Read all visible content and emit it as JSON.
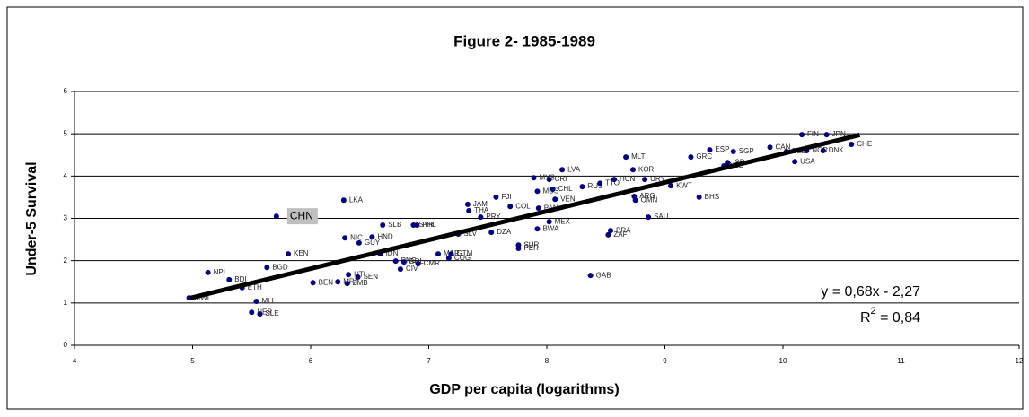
{
  "chart_data": {
    "type": "scatter",
    "title": "Figure 2- 1985-1989",
    "x_label": "GDP per capita (logarithms)",
    "y_label": "Under-5 Survival",
    "xlim": [
      4,
      12
    ],
    "ylim": [
      0,
      6
    ],
    "xticks": [
      4,
      5,
      6,
      7,
      8,
      9,
      10,
      11,
      12
    ],
    "yticks": [
      0,
      1,
      2,
      3,
      4,
      5,
      6
    ],
    "grid": true,
    "color": "#000080",
    "highlight_color": "#c0c0c0",
    "highlighted_points": [
      8
    ],
    "labels": [
      "MWI",
      "NPL",
      "BDI",
      "ETH",
      "BGD",
      "MLI",
      "NER",
      "SLE",
      "CHN",
      "LKA",
      "KEN",
      "NIC",
      "HND",
      "GUY",
      "IDN",
      "SLB",
      "SYR",
      "PHL",
      "PNG",
      "HTI",
      "SEN",
      "MRT",
      "ZMB",
      "BEN",
      "CIV",
      "BOL",
      "CMR",
      "COG",
      "MAR",
      "GTM",
      "JAM",
      "THA",
      "SLV",
      "DZA",
      "PRY",
      "FJI",
      "COL",
      "PAN",
      "BWA",
      "MEX",
      "SUR",
      "PER",
      "BRA",
      "ZAF",
      "GAB",
      "MUS",
      "CHL",
      "CRI",
      "MYS",
      "LVA",
      "VEN",
      "RUS",
      "TTO",
      "HUN",
      "MLT",
      "KOR",
      "OMN",
      "ARG",
      "URY",
      "SAU",
      "KWT",
      "BHS",
      "GRC",
      "ISR",
      "ESP",
      "SGP",
      "NZL",
      "CAN",
      "USA",
      "BEL",
      "NOR",
      "DNK",
      "FIN",
      "JPN",
      "CHE"
    ],
    "x": [
      4.97,
      5.13,
      5.31,
      5.42,
      5.63,
      5.54,
      5.5,
      5.57,
      5.71,
      6.28,
      5.81,
      6.29,
      6.52,
      6.41,
      6.59,
      6.61,
      6.87,
      6.9,
      6.72,
      6.32,
      6.4,
      6.23,
      6.31,
      6.02,
      6.76,
      6.79,
      6.91,
      7.17,
      7.08,
      7.19,
      7.33,
      7.34,
      7.25,
      7.53,
      7.44,
      7.57,
      7.69,
      7.93,
      7.92,
      8.02,
      7.76,
      7.76,
      8.54,
      8.52,
      8.37,
      7.92,
      8.05,
      8.02,
      7.89,
      8.13,
      8.07,
      8.3,
      8.45,
      8.57,
      8.67,
      8.73,
      8.75,
      8.74,
      8.83,
      8.86,
      9.05,
      9.29,
      9.22,
      9.53,
      9.38,
      9.58,
      9.5,
      9.89,
      10.1,
      10.03,
      10.2,
      10.34,
      10.16,
      10.37,
      10.58
    ],
    "y": [
      1.12,
      1.72,
      1.55,
      1.36,
      1.84,
      1.04,
      0.78,
      0.74,
      3.05,
      3.43,
      2.16,
      2.54,
      2.56,
      2.42,
      2.16,
      2.84,
      2.84,
      2.84,
      1.99,
      1.67,
      1.61,
      1.5,
      1.46,
      1.48,
      1.8,
      1.97,
      1.93,
      2.06,
      2.16,
      2.16,
      3.33,
      3.18,
      2.63,
      2.67,
      3.03,
      3.5,
      3.28,
      3.24,
      2.75,
      2.92,
      2.37,
      2.29,
      2.71,
      2.61,
      1.65,
      3.64,
      3.69,
      3.92,
      3.96,
      4.15,
      3.45,
      3.75,
      3.83,
      3.92,
      4.45,
      4.15,
      3.43,
      3.52,
      3.92,
      3.03,
      3.77,
      3.5,
      4.45,
      4.32,
      4.62,
      4.58,
      4.24,
      4.68,
      4.34,
      4.58,
      4.6,
      4.6,
      4.98,
      4.98,
      4.75
    ],
    "trendline": {
      "slope": 0.68,
      "intercept": -2.27,
      "x": [
        4.98,
        10.65
      ]
    },
    "equation": "y = 0,68x - 2,27",
    "r2": {
      "base": "R",
      "sup": "2",
      "rest": " = 0,84"
    }
  }
}
